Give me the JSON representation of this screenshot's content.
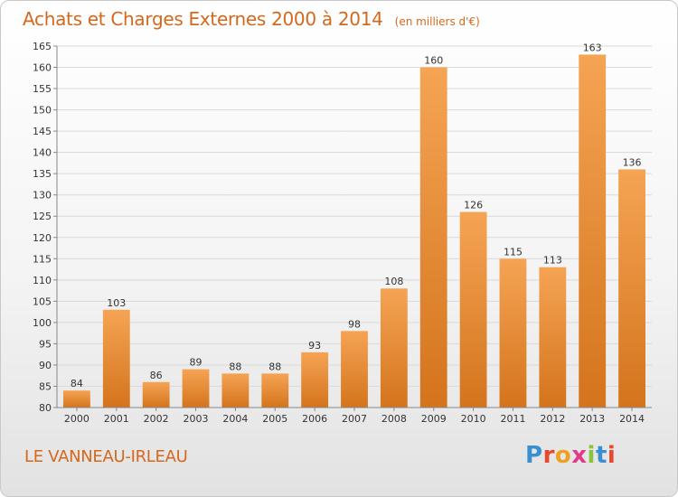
{
  "title": "Achats et Charges Externes 2000 à 2014",
  "subtitle": "(en milliers d'€)",
  "town": "LE VANNEAU-IRLEAU",
  "logo": {
    "letters": [
      "P",
      "r",
      "o",
      "x",
      "i",
      "t",
      "i"
    ],
    "colors": [
      "#3a8fd0",
      "#e64a2e",
      "#f0a020",
      "#e23a8a",
      "#8ac43a",
      "#3a8fd0",
      "#e64a2e"
    ]
  },
  "colors": {
    "bar_top": "#f5a454",
    "bar_bottom": "#d4741c",
    "grid": "#d9d9d9",
    "axis": "#888888",
    "text": "#333333"
  },
  "chart_data": {
    "type": "bar",
    "title": "Achats et Charges Externes 2000 à 2014",
    "subtitle": "(en milliers d'€)",
    "xlabel": "",
    "ylabel": "",
    "categories": [
      "2000",
      "2001",
      "2002",
      "2003",
      "2004",
      "2005",
      "2006",
      "2007",
      "2008",
      "2009",
      "2010",
      "2011",
      "2012",
      "2013",
      "2014"
    ],
    "values": [
      84,
      103,
      86,
      89,
      88,
      88,
      93,
      98,
      108,
      160,
      126,
      115,
      113,
      163,
      136
    ],
    "ylim": [
      80,
      165
    ],
    "yticks": [
      80,
      85,
      90,
      95,
      100,
      105,
      110,
      115,
      120,
      125,
      130,
      135,
      140,
      145,
      150,
      155,
      160,
      165
    ],
    "grid": true,
    "data_labels": true
  }
}
